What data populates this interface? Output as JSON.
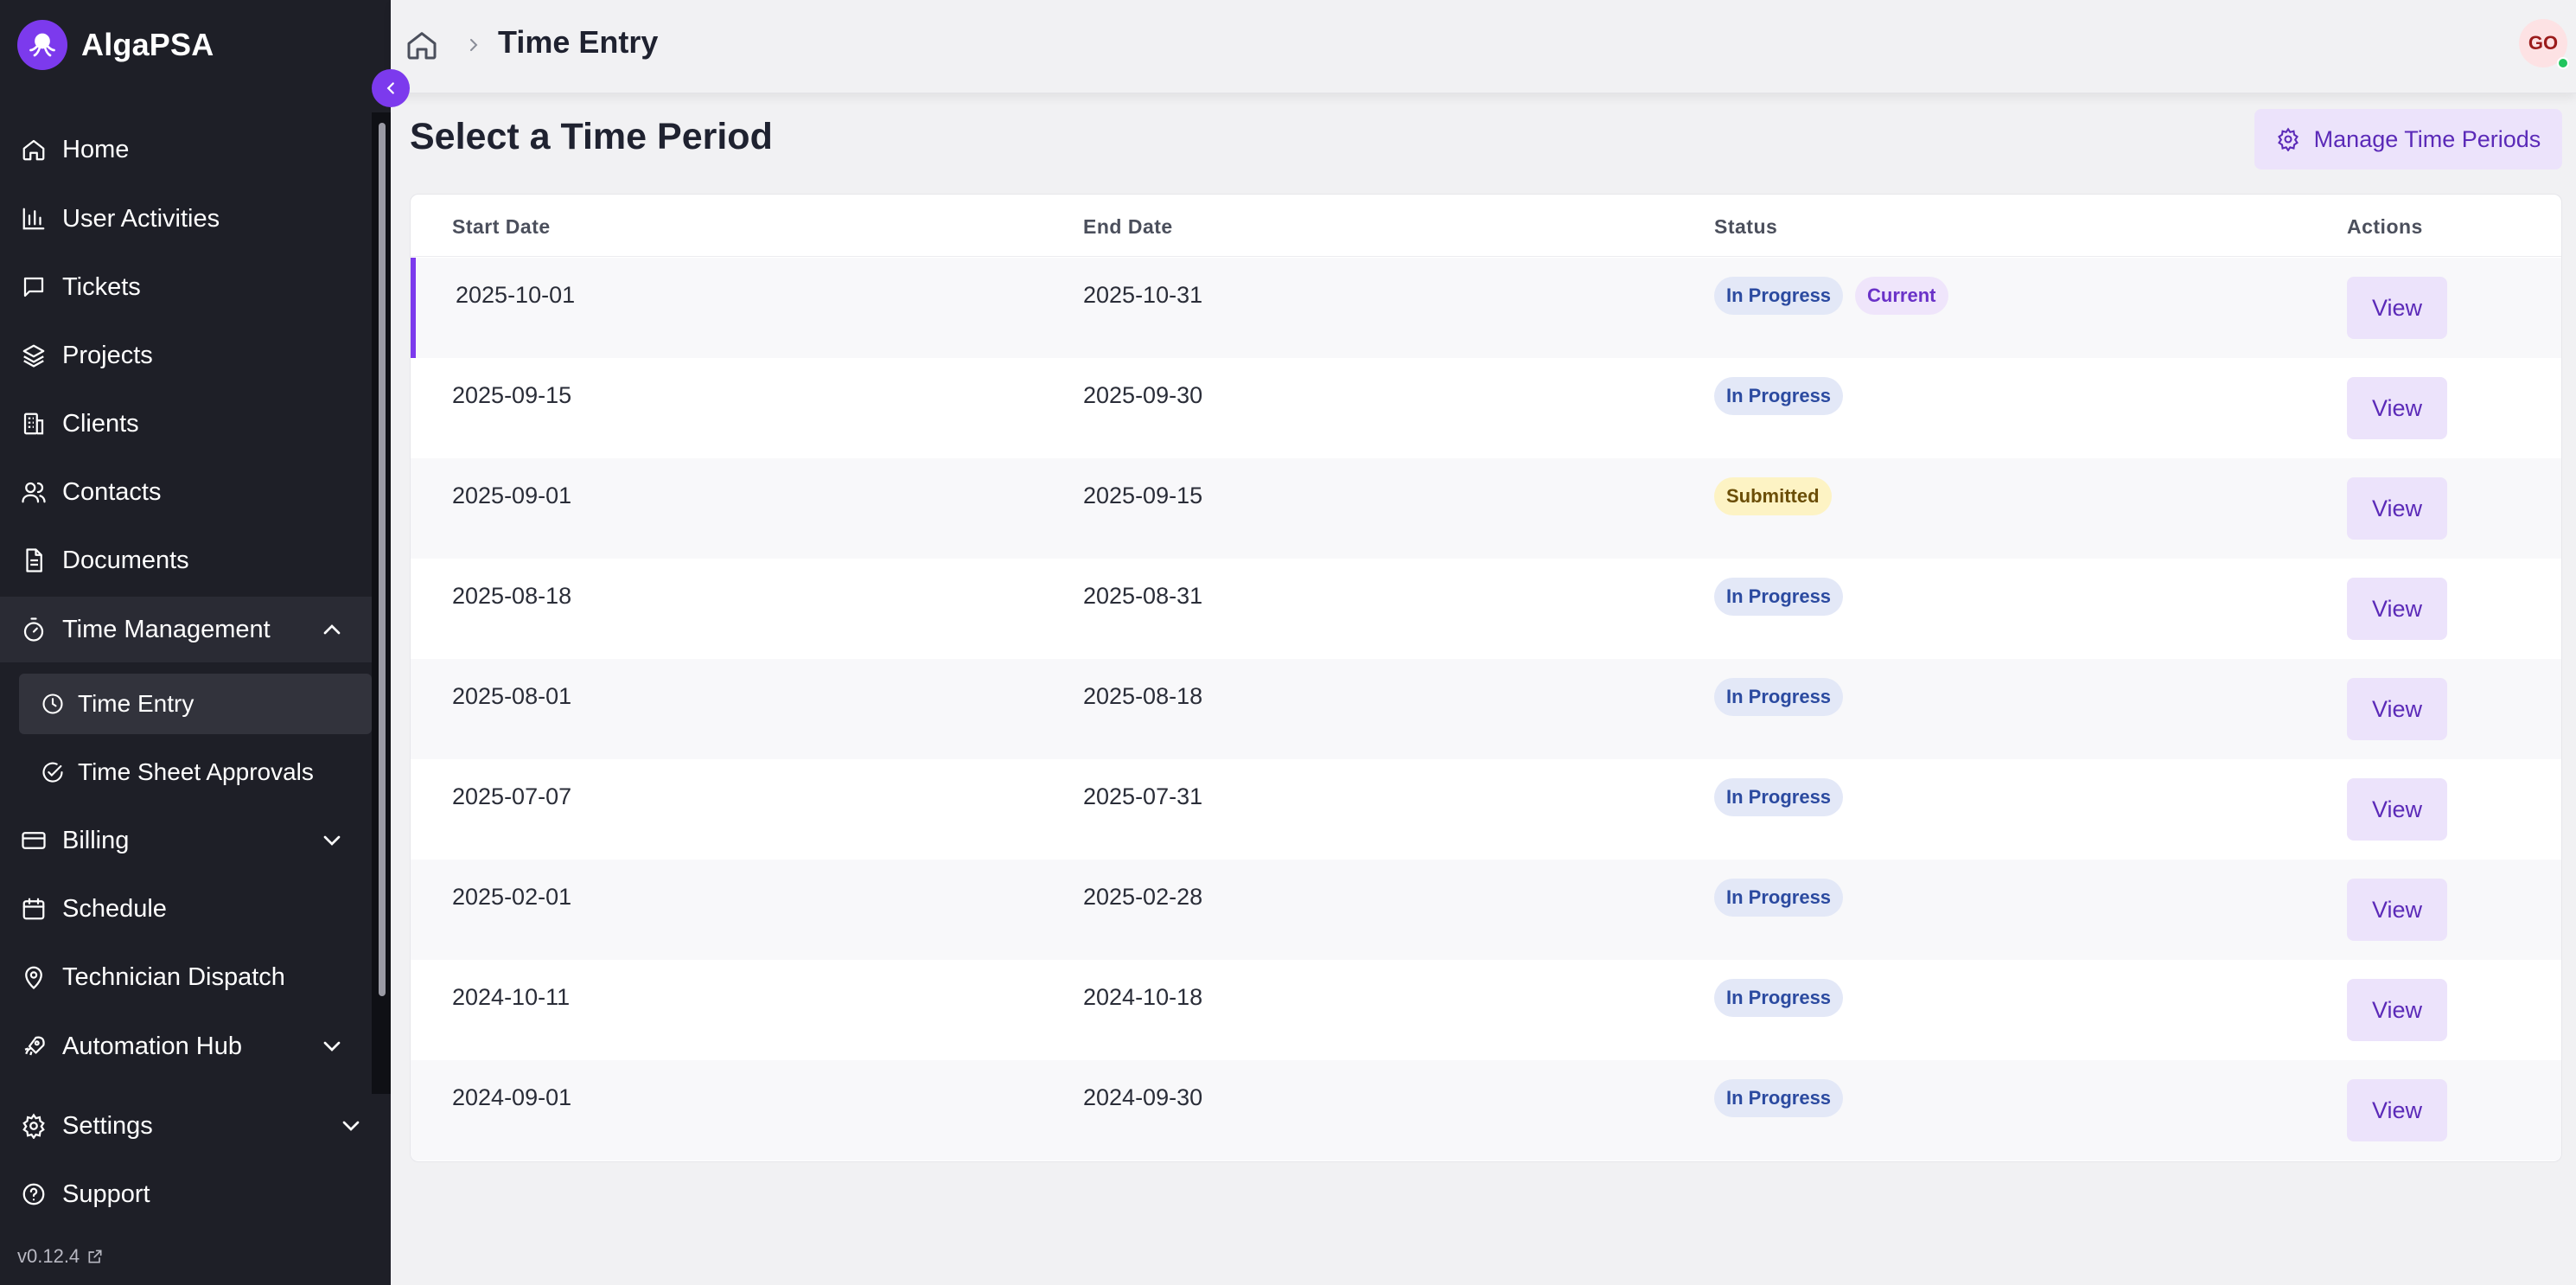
{
  "app": {
    "name": "AlgaPSA",
    "version": "v0.12.4"
  },
  "sidebar": {
    "items": [
      {
        "label": "Home",
        "icon": "home-icon"
      },
      {
        "label": "User Activities",
        "icon": "bar-chart-icon"
      },
      {
        "label": "Tickets",
        "icon": "message-square-icon"
      },
      {
        "label": "Projects",
        "icon": "layers-icon"
      },
      {
        "label": "Clients",
        "icon": "building-icon"
      },
      {
        "label": "Contacts",
        "icon": "users-icon"
      },
      {
        "label": "Documents",
        "icon": "document-icon"
      },
      {
        "label": "Time Management",
        "icon": "timer-icon",
        "expanded": true,
        "children": [
          {
            "label": "Time Entry",
            "icon": "clock-icon",
            "active": true
          },
          {
            "label": "Time Sheet Approvals",
            "icon": "check-circle-icon"
          }
        ]
      },
      {
        "label": "Billing",
        "icon": "credit-card-icon"
      },
      {
        "label": "Schedule",
        "icon": "calendar-icon"
      },
      {
        "label": "Technician Dispatch",
        "icon": "map-pin-icon"
      },
      {
        "label": "Automation Hub",
        "icon": "rocket-icon"
      },
      {
        "label": "Settings",
        "icon": "gear-icon"
      },
      {
        "label": "Support",
        "icon": "help-circle-icon"
      }
    ]
  },
  "header": {
    "title": "Time Entry",
    "user_initials": "GO"
  },
  "main": {
    "title": "Select a Time Period",
    "manage_button": "Manage Time Periods",
    "table": {
      "columns": [
        "Start Date",
        "End Date",
        "Status",
        "Actions"
      ],
      "rows": [
        {
          "start": "2025-10-01",
          "end": "2025-10-31",
          "status": "In Progress",
          "extra_badge": "Current",
          "action": "View"
        },
        {
          "start": "2025-09-15",
          "end": "2025-09-30",
          "status": "In Progress",
          "action": "View"
        },
        {
          "start": "2025-09-01",
          "end": "2025-09-15",
          "status": "Submitted",
          "action": "View"
        },
        {
          "start": "2025-08-18",
          "end": "2025-08-31",
          "status": "In Progress",
          "action": "View"
        },
        {
          "start": "2025-08-01",
          "end": "2025-08-18",
          "status": "In Progress",
          "action": "View"
        },
        {
          "start": "2025-07-07",
          "end": "2025-07-31",
          "status": "In Progress",
          "action": "View"
        },
        {
          "start": "2025-02-01",
          "end": "2025-02-28",
          "status": "In Progress",
          "action": "View"
        },
        {
          "start": "2024-10-11",
          "end": "2024-10-18",
          "status": "In Progress",
          "action": "View"
        },
        {
          "start": "2024-09-01",
          "end": "2024-09-30",
          "status": "In Progress",
          "action": "View"
        }
      ]
    }
  },
  "colors": {
    "accent": "#7c3aed",
    "sidebar": "#1e1f27"
  }
}
